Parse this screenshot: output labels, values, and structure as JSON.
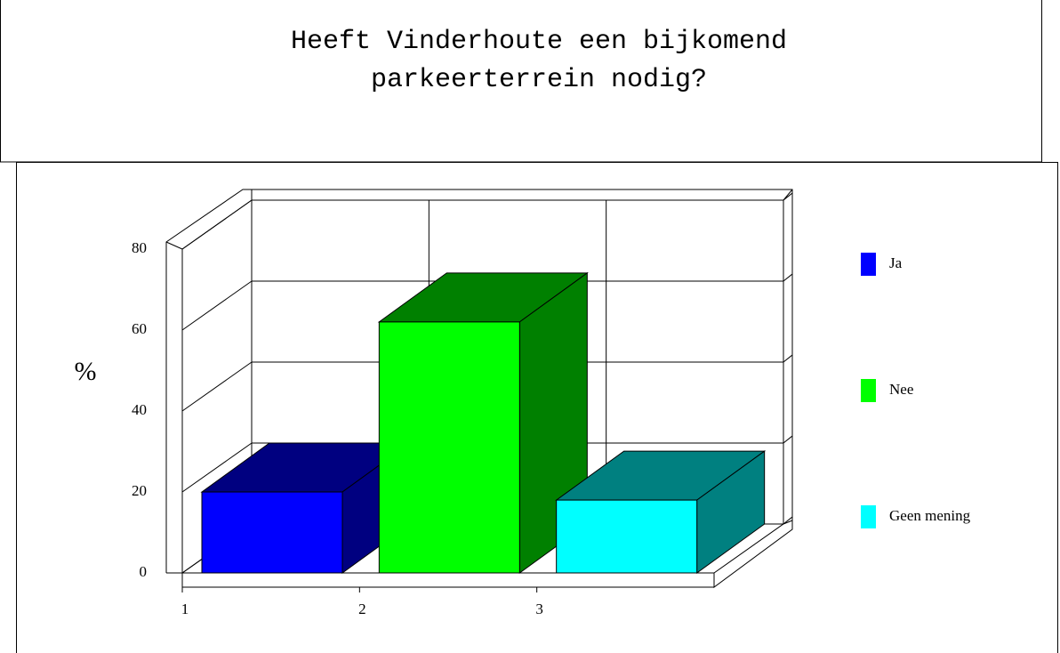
{
  "chart_data": {
    "type": "bar",
    "title": [
      "Heeft Vinderhoute een bijkomend",
      "parkeerterrein nodig?"
    ],
    "y_label": "%",
    "categories": [
      "1",
      "2",
      "3"
    ],
    "values": [
      20,
      62,
      18
    ],
    "legend": [
      "Ja",
      "Nee",
      "Geen mening"
    ],
    "colors": [
      "#0000ff",
      "#00ff00",
      "#00ffff"
    ],
    "shade_colors": [
      "#000080",
      "#008000",
      "#008080"
    ],
    "ylim": [
      0,
      80
    ],
    "yticks": [
      0,
      20,
      40,
      60,
      80
    ],
    "grid": true
  }
}
